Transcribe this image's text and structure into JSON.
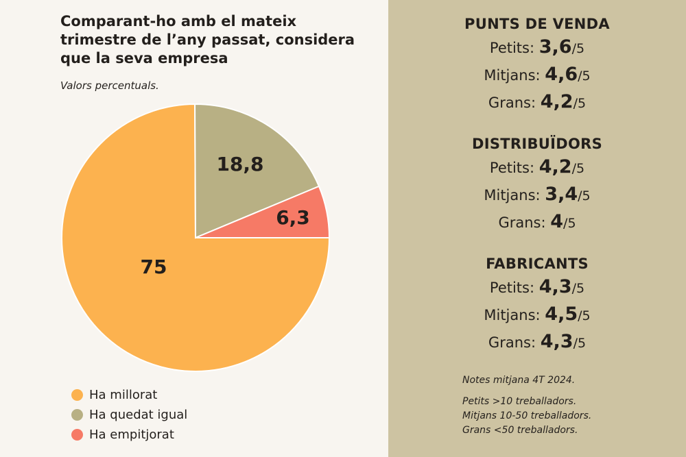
{
  "title": "Comparant-ho amb el mateix trimestre de l’any passat, considera que la seva empresa",
  "subtitle": "Valors percentuals.",
  "chart_data": {
    "type": "pie",
    "categories": [
      "Ha millorat",
      "Ha quedat igual",
      "Ha empitjorat"
    ],
    "values": [
      75,
      18.8,
      6.3
    ],
    "data_labels": [
      "75",
      "18,8",
      "6,3"
    ],
    "colors": [
      "#fcb24f",
      "#b8b084",
      "#f67a66"
    ],
    "legend": "bottom-left"
  },
  "ratings": [
    {
      "heading": "PUNTS DE VENDA",
      "rows": [
        {
          "label": "Petits:",
          "value": "3,6",
          "max": "/5"
        },
        {
          "label": "Mitjans:",
          "value": "4,6",
          "max": "/5"
        },
        {
          "label": "Grans:",
          "value": "4,2",
          "max": "/5"
        }
      ]
    },
    {
      "heading": "DISTRIBUÏDORS",
      "rows": [
        {
          "label": "Petits:",
          "value": "4,2",
          "max": "/5"
        },
        {
          "label": "Mitjans:",
          "value": "3,4",
          "max": "/5"
        },
        {
          "label": "Grans:",
          "value": "4",
          "max": "/5"
        }
      ]
    },
    {
      "heading": "FABRICANTS",
      "rows": [
        {
          "label": "Petits:",
          "value": "4,3",
          "max": "/5"
        },
        {
          "label": "Mitjans:",
          "value": "4,5",
          "max": "/5"
        },
        {
          "label": "Grans:",
          "value": "4,3",
          "max": "/5"
        }
      ]
    }
  ],
  "notes": {
    "line1": "Notes mitjana 4T 2024.",
    "lines": [
      "Petits >10 treballadors.",
      "Mitjans 10-50 treballadors.",
      "Grans <50 treballadors."
    ]
  },
  "colors": {
    "panel": "#cdc3a2",
    "background": "#f8f5f0",
    "text": "#231f1c"
  }
}
